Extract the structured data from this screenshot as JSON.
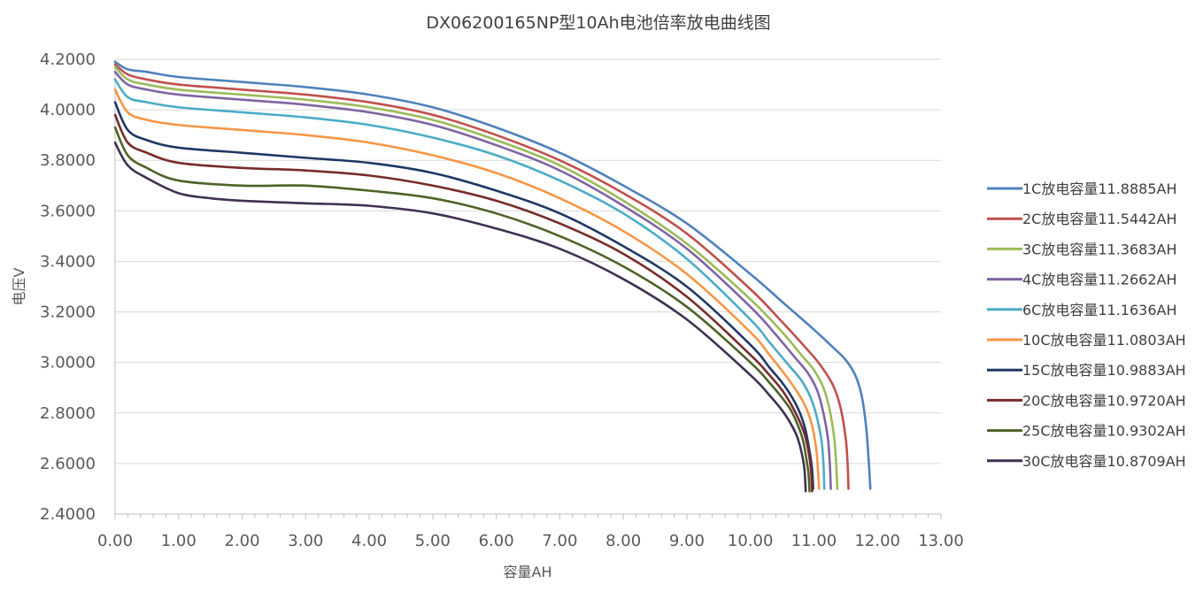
{
  "chart_data": {
    "type": "line",
    "title": "DX06200165NP型10Ah电池倍率放电曲线图",
    "xlabel": "容量AH",
    "ylabel": "电压V",
    "xlim": [
      0,
      13
    ],
    "ylim": [
      2.4,
      4.2
    ],
    "x_ticks": [
      "0.00",
      "1.00",
      "2.00",
      "3.00",
      "4.00",
      "5.00",
      "6.00",
      "7.00",
      "8.00",
      "9.00",
      "10.00",
      "11.00",
      "12.00",
      "13.00"
    ],
    "y_ticks": [
      "2.4000",
      "2.6000",
      "2.8000",
      "3.0000",
      "3.2000",
      "3.4000",
      "3.6000",
      "3.8000",
      "4.0000",
      "4.2000"
    ],
    "grid": "horizontal",
    "legend_position": "right",
    "series": [
      {
        "name": "1C放电容量11.8885AH",
        "color": "#4f81bd",
        "x": [
          0,
          0.2,
          0.5,
          1,
          2,
          3,
          4,
          5,
          6,
          7,
          8,
          9,
          10,
          10.5,
          11,
          11.3,
          11.5,
          11.65,
          11.75,
          11.82,
          11.86,
          11.8885
        ],
        "y": [
          4.19,
          4.16,
          4.15,
          4.13,
          4.11,
          4.09,
          4.06,
          4.01,
          3.93,
          3.83,
          3.7,
          3.55,
          3.35,
          3.24,
          3.13,
          3.06,
          3.01,
          2.95,
          2.87,
          2.75,
          2.62,
          2.5
        ]
      },
      {
        "name": "2C放电容量11.5442AH",
        "color": "#c0504d",
        "x": [
          0,
          0.2,
          0.5,
          1,
          2,
          3,
          4,
          5,
          6,
          7,
          8,
          9,
          10,
          10.5,
          10.9,
          11.1,
          11.3,
          11.42,
          11.5,
          11.53,
          11.5442
        ],
        "y": [
          4.18,
          4.14,
          4.12,
          4.1,
          4.08,
          4.06,
          4.03,
          3.98,
          3.9,
          3.8,
          3.67,
          3.51,
          3.29,
          3.16,
          3.05,
          2.99,
          2.91,
          2.82,
          2.7,
          2.6,
          2.5
        ]
      },
      {
        "name": "3C放电容量11.3683AH",
        "color": "#9bbb59",
        "x": [
          0,
          0.2,
          0.5,
          1,
          2,
          3,
          4,
          5,
          6,
          7,
          8,
          9,
          10,
          10.5,
          10.8,
          11.0,
          11.15,
          11.25,
          11.32,
          11.35,
          11.3683
        ],
        "y": [
          4.17,
          4.12,
          4.1,
          4.08,
          4.06,
          4.04,
          4.01,
          3.96,
          3.88,
          3.78,
          3.64,
          3.47,
          3.25,
          3.12,
          3.03,
          2.97,
          2.9,
          2.81,
          2.7,
          2.6,
          2.5
        ]
      },
      {
        "name": "4C放电容量11.2662AH",
        "color": "#8064a2",
        "x": [
          0,
          0.2,
          0.5,
          1,
          2,
          3,
          4,
          5,
          6,
          7,
          8,
          9,
          10,
          10.4,
          10.7,
          10.9,
          11.05,
          11.15,
          11.22,
          11.25,
          11.2662
        ],
        "y": [
          4.15,
          4.1,
          4.08,
          4.06,
          4.04,
          4.02,
          3.99,
          3.94,
          3.86,
          3.76,
          3.62,
          3.45,
          3.22,
          3.11,
          3.02,
          2.96,
          2.89,
          2.8,
          2.7,
          2.6,
          2.5
        ]
      },
      {
        "name": "6C放电容量11.1636AH",
        "color": "#4bacc6",
        "x": [
          0,
          0.2,
          0.5,
          1,
          2,
          3,
          4,
          5,
          6,
          7,
          8,
          9,
          10,
          10.3,
          10.6,
          10.8,
          10.95,
          11.05,
          11.12,
          11.15,
          11.1636
        ],
        "y": [
          4.12,
          4.05,
          4.03,
          4.01,
          3.99,
          3.97,
          3.94,
          3.89,
          3.82,
          3.72,
          3.59,
          3.41,
          3.17,
          3.08,
          2.99,
          2.93,
          2.86,
          2.78,
          2.69,
          2.6,
          2.5
        ]
      },
      {
        "name": "10C放电容量11.0803AH",
        "color": "#f79646",
        "x": [
          0,
          0.2,
          0.5,
          1,
          2,
          3,
          4,
          5,
          6,
          7,
          8,
          9,
          10,
          10.3,
          10.55,
          10.72,
          10.86,
          10.96,
          11.03,
          11.06,
          11.0803
        ],
        "y": [
          4.08,
          3.99,
          3.96,
          3.94,
          3.92,
          3.9,
          3.87,
          3.82,
          3.75,
          3.65,
          3.52,
          3.35,
          3.12,
          3.03,
          2.95,
          2.89,
          2.83,
          2.76,
          2.67,
          2.59,
          2.5
        ]
      },
      {
        "name": "15C放电容量10.9883AH",
        "color": "#1f3864",
        "x": [
          0,
          0.2,
          0.5,
          1,
          2,
          3,
          4,
          5,
          6,
          7,
          8,
          9,
          10,
          10.3,
          10.5,
          10.66,
          10.78,
          10.87,
          10.93,
          10.97,
          10.9883
        ],
        "y": [
          4.03,
          3.92,
          3.88,
          3.85,
          3.83,
          3.81,
          3.79,
          3.75,
          3.68,
          3.59,
          3.46,
          3.3,
          3.07,
          2.98,
          2.92,
          2.86,
          2.8,
          2.73,
          2.65,
          2.58,
          2.5
        ]
      },
      {
        "name": "20C放电容量10.9720AH",
        "color": "#772c2a",
        "x": [
          0,
          0.2,
          0.5,
          1,
          2,
          3,
          4,
          5,
          6,
          7,
          8,
          9,
          10,
          10.3,
          10.5,
          10.65,
          10.77,
          10.86,
          10.92,
          10.955,
          10.972
        ],
        "y": [
          3.98,
          3.87,
          3.83,
          3.79,
          3.77,
          3.76,
          3.74,
          3.7,
          3.64,
          3.55,
          3.43,
          3.26,
          3.03,
          2.95,
          2.89,
          2.83,
          2.77,
          2.71,
          2.64,
          2.57,
          2.49
        ]
      },
      {
        "name": "25C放电容量10.9302AH",
        "color": "#4f6228",
        "x": [
          0,
          0.2,
          0.5,
          1,
          2,
          3,
          4,
          5,
          6,
          7,
          8,
          9,
          10,
          10.3,
          10.5,
          10.64,
          10.75,
          10.83,
          10.88,
          10.915,
          10.9302
        ],
        "y": [
          3.93,
          3.82,
          3.77,
          3.72,
          3.7,
          3.7,
          3.68,
          3.65,
          3.59,
          3.5,
          3.38,
          3.22,
          3.0,
          2.92,
          2.86,
          2.81,
          2.75,
          2.69,
          2.62,
          2.56,
          2.49
        ]
      },
      {
        "name": "30C放电容量10.8709AH",
        "color": "#3f3151",
        "x": [
          0,
          0.2,
          0.5,
          1,
          1.5,
          2,
          3,
          4,
          5,
          6,
          7,
          8,
          9,
          10,
          10.3,
          10.5,
          10.63,
          10.73,
          10.8,
          10.85,
          10.8709
        ],
        "y": [
          3.87,
          3.78,
          3.73,
          3.67,
          3.65,
          3.64,
          3.63,
          3.62,
          3.59,
          3.53,
          3.45,
          3.33,
          3.17,
          2.95,
          2.87,
          2.81,
          2.76,
          2.71,
          2.65,
          2.58,
          2.49
        ]
      }
    ]
  }
}
